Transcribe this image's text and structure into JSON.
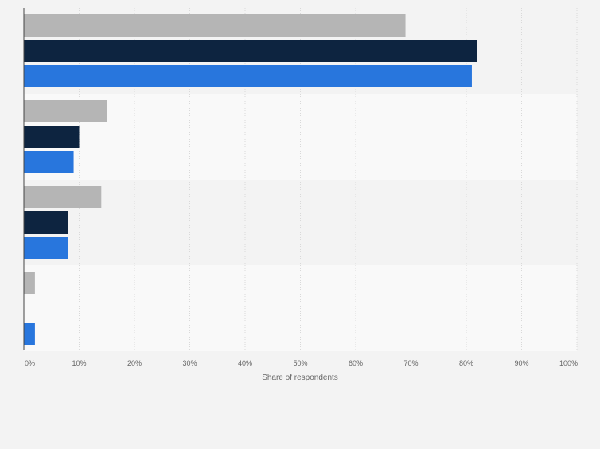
{
  "chart_data": {
    "type": "bar",
    "orientation": "horizontal",
    "categories": [
      "",
      "",
      "",
      ""
    ],
    "series": [
      {
        "color": "#b5b5b5",
        "values": [
          69,
          15,
          14,
          2
        ]
      },
      {
        "color": "#0d2440",
        "values": [
          82,
          10,
          8,
          0
        ]
      },
      {
        "color": "#2876dd",
        "values": [
          81,
          9,
          8,
          2
        ]
      }
    ],
    "xlabel": "Share of respondents",
    "xlim": [
      0,
      100
    ],
    "xticks": [
      "0%",
      "10%",
      "20%",
      "30%",
      "40%",
      "50%",
      "60%",
      "70%",
      "80%",
      "90%",
      "100%"
    ],
    "grid": true,
    "legend": "none"
  }
}
